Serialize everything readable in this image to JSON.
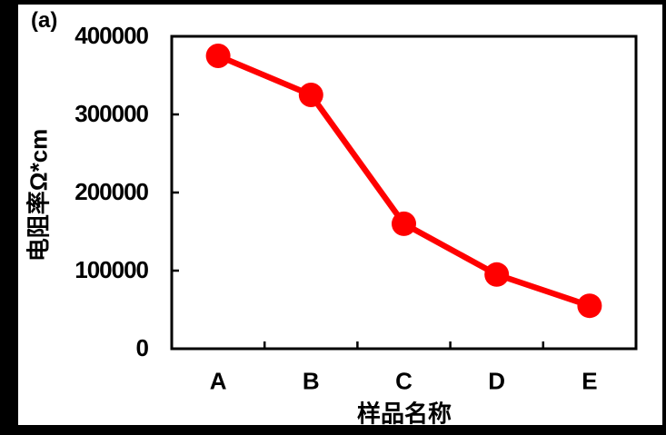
{
  "figure_label": "(a)",
  "colors": {
    "series": "#FF0000",
    "axis": "#000000",
    "text": "#000000",
    "panel_background": "#FFFFFF",
    "frame_background": "#000000"
  },
  "chart_data": {
    "type": "line",
    "title": "",
    "categories": [
      "A",
      "B",
      "C",
      "D",
      "E"
    ],
    "series": [
      {
        "name": "电阻率",
        "values": [
          375000,
          325000,
          160000,
          95000,
          55000
        ],
        "color": "#FF0000",
        "marker": "circle",
        "line_width": 6.5,
        "marker_radius": 13.5
      }
    ],
    "xlabel": "样品名称",
    "ylabel": "电阻率Ω*cm",
    "ylim": [
      0,
      400000
    ],
    "yticks": [
      "0",
      "100000",
      "200000",
      "300000",
      "400000"
    ],
    "ytick_values": [
      0,
      100000,
      200000,
      300000,
      400000
    ],
    "grid": false,
    "legend": false,
    "tick_direction": "in"
  }
}
